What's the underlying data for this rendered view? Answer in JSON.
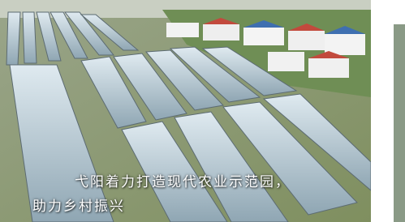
{
  "caption": {
    "lines": [
      "弋阳着力打造现代农业示范园，",
      "助力乡村振兴"
    ]
  }
}
